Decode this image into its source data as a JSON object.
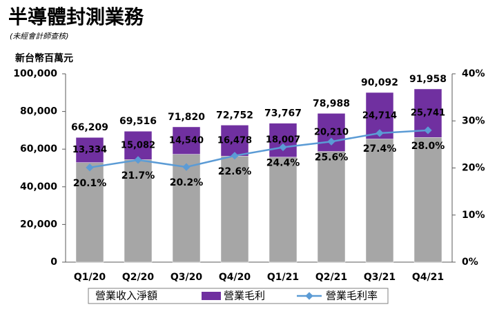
{
  "chart_data": {
    "type": "bar",
    "title": "半導體封測業務",
    "subtitle": "(未經會計師查核)",
    "y_label": "新台幣百萬元",
    "categories": [
      "Q1/20",
      "Q2/20",
      "Q3/20",
      "Q4/20",
      "Q1/21",
      "Q2/21",
      "Q3/21",
      "Q4/21"
    ],
    "series": [
      {
        "name": "營業收入淨額",
        "color": "#a6a6a6",
        "values": [
          66209,
          69516,
          71820,
          72752,
          73767,
          78988,
          90092,
          91958
        ],
        "value_labels": [
          "66,209",
          "69,516",
          "71,820",
          "72,752",
          "73,767",
          "78,988",
          "90,092",
          "91,958"
        ]
      },
      {
        "name": "營業毛利",
        "color": "#7030a0",
        "values": [
          13334,
          15082,
          14540,
          16478,
          18007,
          20210,
          24714,
          25741
        ],
        "value_labels": [
          "13,334",
          "15,082",
          "14,540",
          "16,478",
          "18,007",
          "20,210",
          "24,714",
          "25,741"
        ]
      },
      {
        "name": "營業毛利率",
        "type": "line",
        "axis": "y2",
        "color": "#5b9bd5",
        "values": [
          20.1,
          21.7,
          20.2,
          22.6,
          24.4,
          25.6,
          27.4,
          28.0
        ],
        "value_labels": [
          "20.1%",
          "21.7%",
          "20.2%",
          "22.6%",
          "24.4%",
          "25.6%",
          "27.4%",
          "28.0%"
        ]
      }
    ],
    "ylim": [
      0,
      100000
    ],
    "yticks": [
      0,
      {
        "value": 20000,
        "label": "20,000"
      },
      {
        "value": 40000,
        "label": "40,000"
      },
      {
        "value": 60000,
        "label": "60,000"
      },
      {
        "value": 80000,
        "label": "80,000"
      },
      {
        "value": 100000,
        "label": "100,000"
      }
    ],
    "y2lim": [
      0,
      40
    ],
    "y2ticks": [
      {
        "value": 0,
        "label": "0%"
      },
      {
        "value": 10,
        "label": "10%"
      },
      {
        "value": 20,
        "label": "20%"
      },
      {
        "value": 30,
        "label": "30%"
      },
      {
        "value": 40,
        "label": "40%"
      }
    ]
  }
}
